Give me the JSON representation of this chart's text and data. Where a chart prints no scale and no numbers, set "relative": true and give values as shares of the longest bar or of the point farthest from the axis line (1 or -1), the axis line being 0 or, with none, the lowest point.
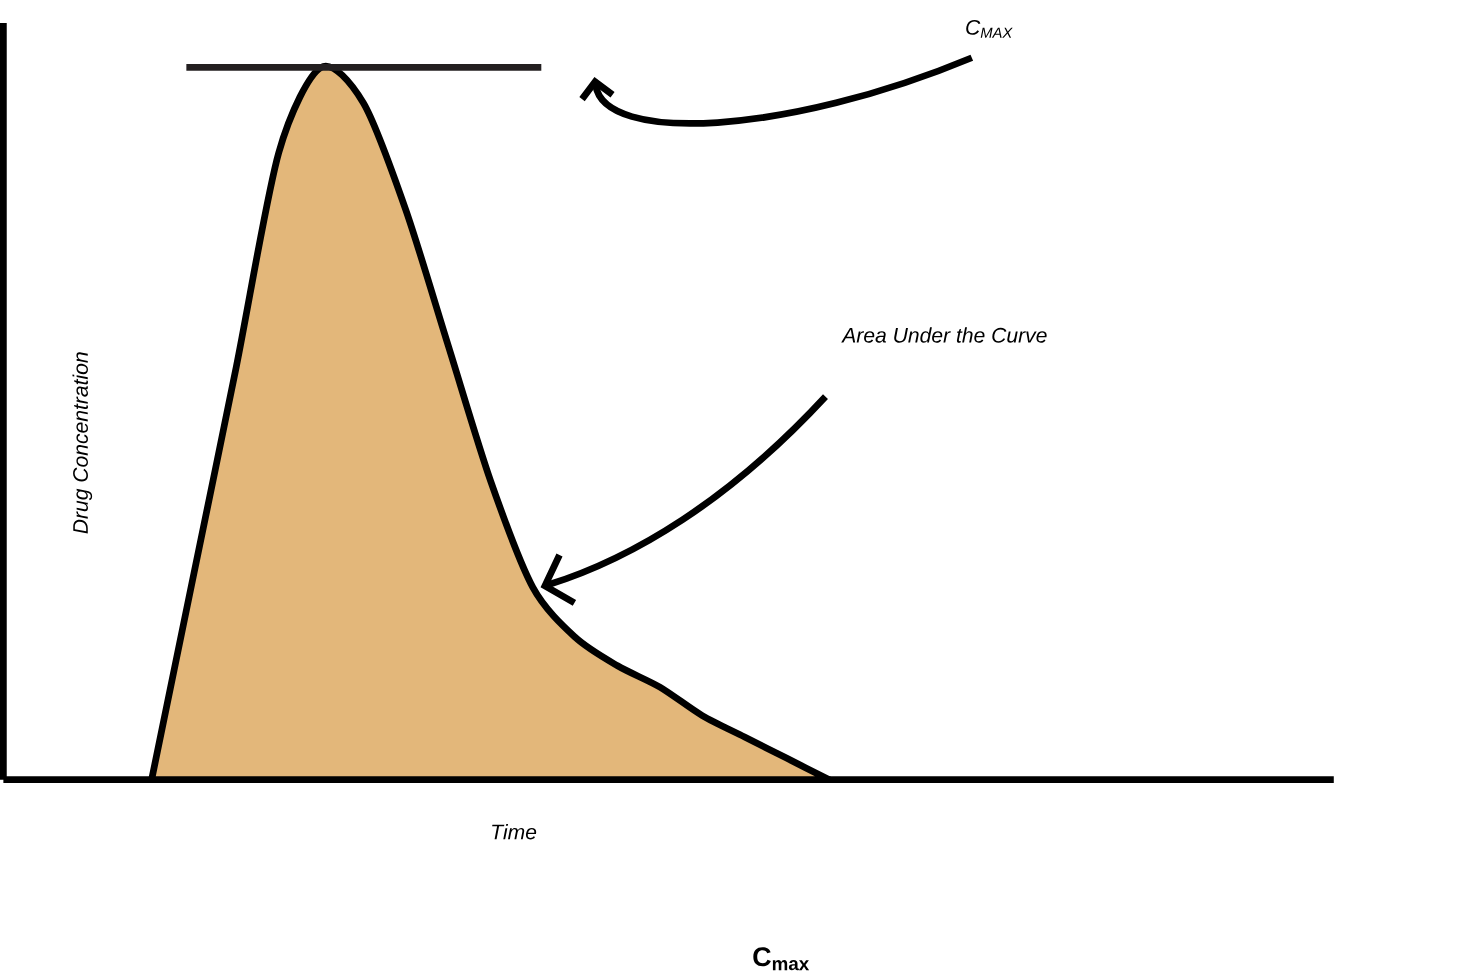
{
  "chart_data": {
    "type": "area",
    "relative": true,
    "xlabel": "Time",
    "ylabel": "Drug Concentration",
    "categories": [
      null,
      null,
      null,
      null,
      null,
      null,
      null,
      null,
      null,
      null,
      null,
      null,
      null,
      null,
      null,
      null,
      null
    ],
    "values": [
      0,
      0.29,
      0.58,
      0.88,
      1.0,
      0.95,
      0.8,
      0.61,
      0.42,
      0.27,
      0.2,
      0.16,
      0.13,
      0.09,
      0.06,
      0.03,
      0
    ],
    "color": "#e3b77a",
    "ref_lines": [
      {
        "axis": "y",
        "value": 1,
        "label": "C$_{MAX}$",
        "color": "#231f20"
      }
    ],
    "annotations": [
      "Area Under the Curve",
      "C$_{max}$"
    ]
  }
}
